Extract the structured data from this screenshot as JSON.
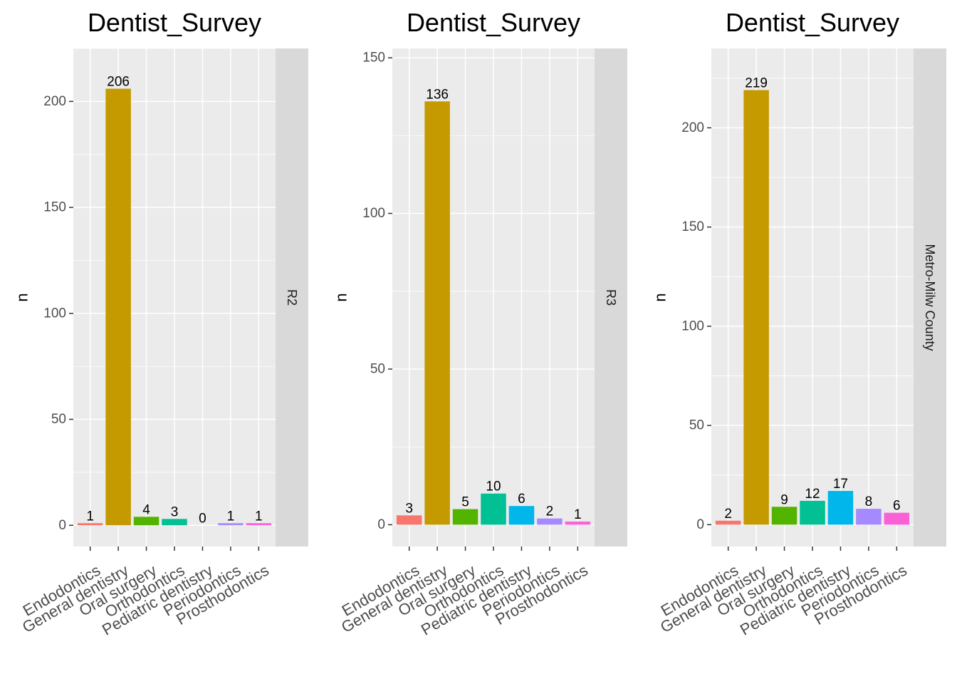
{
  "chart_data": [
    {
      "type": "bar",
      "title": "Dentist_Survey",
      "facet": "R2",
      "ylabel": "n",
      "xlabel": "",
      "categories": [
        "Endodontics",
        "General dentistry",
        "Oral surgery",
        "Orthodontics",
        "Pediatric dentistry",
        "Periodontics",
        "Prosthodontics"
      ],
      "values": [
        1,
        206,
        4,
        3,
        0,
        1,
        1
      ],
      "data_labels": [
        "1",
        "206",
        "4",
        "3",
        "0",
        "1",
        "1"
      ],
      "yticks": [
        "0",
        "50",
        "100",
        "150",
        "200"
      ],
      "ylim": [
        -10,
        225
      ]
    },
    {
      "type": "bar",
      "title": "Dentist_Survey",
      "facet": "R3",
      "ylabel": "n",
      "xlabel": "",
      "categories": [
        "Endodontics",
        "General dentistry",
        "Oral surgery",
        "Orthodontics",
        "Pediatric dentistry",
        "Periodontics",
        "Prosthodontics"
      ],
      "values": [
        3,
        136,
        5,
        10,
        6,
        2,
        1
      ],
      "data_labels": [
        "3",
        "136",
        "5",
        "10",
        "6",
        "2",
        "1"
      ],
      "yticks": [
        "0",
        "50",
        "100",
        "150"
      ],
      "ylim": [
        -7,
        153
      ]
    },
    {
      "type": "bar",
      "title": "Dentist_Survey",
      "facet": "Metro-Milw County",
      "ylabel": "n",
      "xlabel": "",
      "categories": [
        "Endodontics",
        "General dentistry",
        "Oral surgery",
        "Orthodontics",
        "Pediatric dentistry",
        "Periodontics",
        "Prosthodontics"
      ],
      "values": [
        2,
        219,
        9,
        12,
        17,
        8,
        6
      ],
      "data_labels": [
        "2",
        "219",
        "9",
        "12",
        "17",
        "8",
        "6"
      ],
      "yticks": [
        "0",
        "50",
        "100",
        "150",
        "200"
      ],
      "ylim": [
        -11,
        240
      ]
    }
  ],
  "colors": [
    "#F8766D",
    "#C49A00",
    "#53B400",
    "#00C094",
    "#00B6EB",
    "#A58AFF",
    "#FB61D7"
  ]
}
